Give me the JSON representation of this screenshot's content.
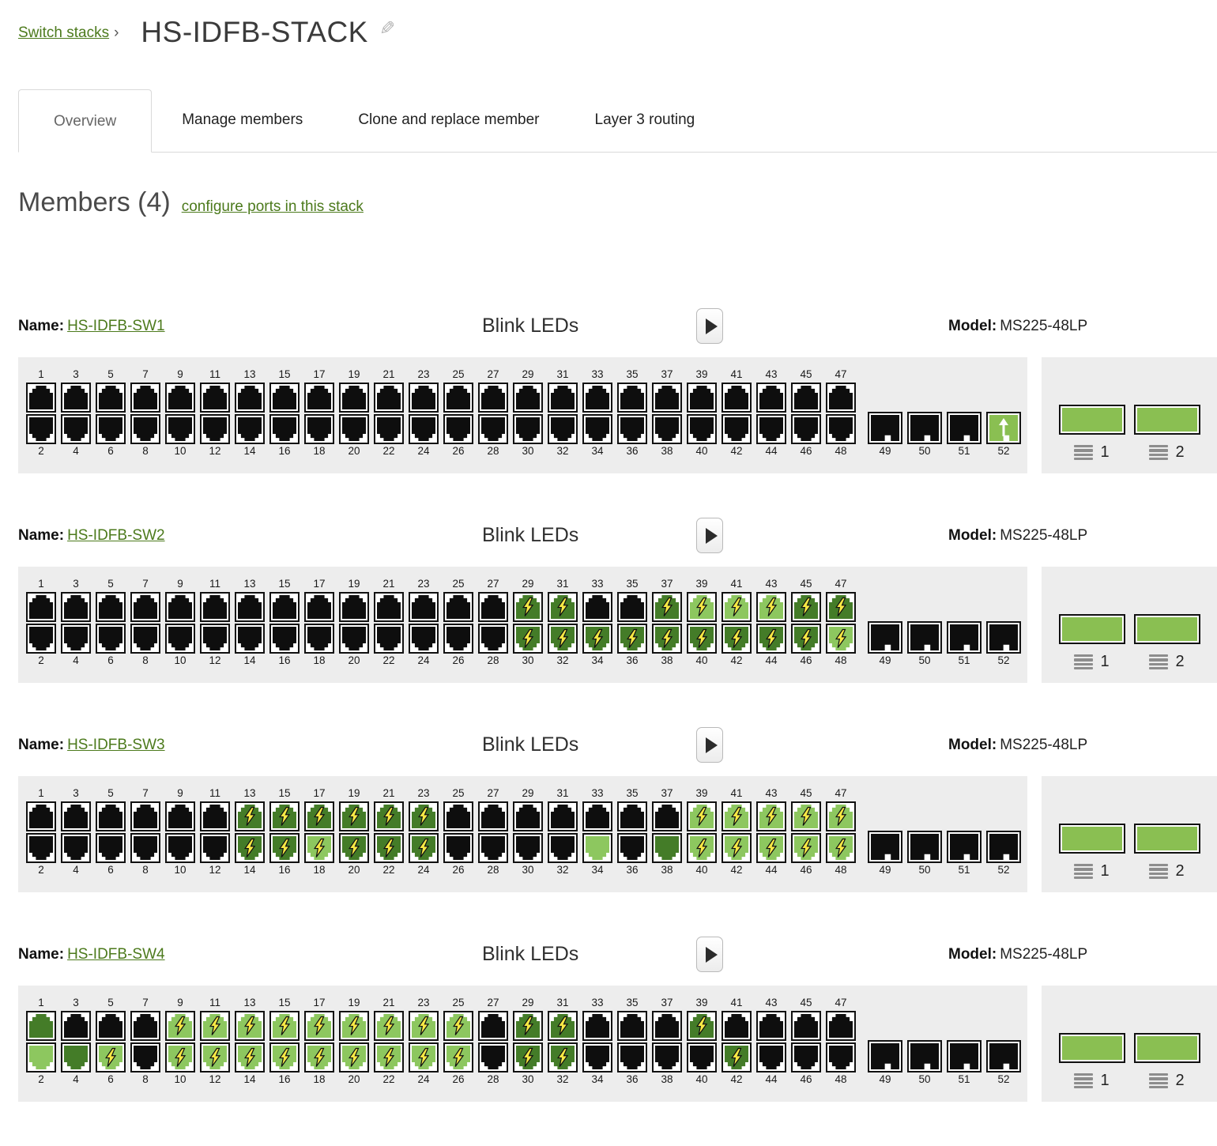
{
  "breadcrumb": {
    "label": "Switch stacks",
    "separator": "›"
  },
  "page": {
    "title": "HS-IDFB-STACK",
    "edit_icon": "✎"
  },
  "tabs": [
    {
      "label": "Overview",
      "active": true
    },
    {
      "label": "Manage members",
      "active": false
    },
    {
      "label": "Clone and replace member",
      "active": false
    },
    {
      "label": "Layer 3 routing",
      "active": false
    }
  ],
  "members": {
    "heading": "Members (4)",
    "configure_link": "configure ports in this stack"
  },
  "switch_row": {
    "name_label": "Name:",
    "model_label": "Model:",
    "blink_label": "Blink LEDs"
  },
  "stack_ports": {
    "labels": [
      "1",
      "2"
    ]
  },
  "ports": {
    "count": 52,
    "sfp_start": 49
  },
  "colors": {
    "link_green": "#4c7a1c",
    "port_black": "#0e0e0e",
    "port_dark_green": "#447c28",
    "port_light_green": "#8dc75f",
    "bolt_yellow": "#f6e844",
    "panel_bg": "#ededed",
    "stack_port_green": "#8abf52"
  },
  "switches": [
    {
      "name": "HS-IDFB-SW1",
      "model": "MS225-48LP",
      "port_states": {
        "52": "uplink"
      }
    },
    {
      "name": "HS-IDFB-SW2",
      "model": "MS225-48LP",
      "port_states": {
        "29": "dark-bolt",
        "30": "dark-bolt",
        "31": "dark-bolt",
        "32": "dark-bolt",
        "34": "dark-bolt",
        "36": "dark-bolt",
        "37": "dark-bolt",
        "38": "dark-bolt",
        "39": "light-bolt",
        "40": "dark-bolt",
        "41": "light-bolt",
        "42": "dark-bolt",
        "43": "light-bolt",
        "44": "dark-bolt",
        "45": "dark-bolt",
        "46": "dark-bolt",
        "47": "dark-bolt",
        "48": "light-bolt"
      }
    },
    {
      "name": "HS-IDFB-SW3",
      "model": "MS225-48LP",
      "port_states": {
        "13": "dark-bolt",
        "14": "dark-bolt",
        "15": "dark-bolt",
        "16": "dark-bolt",
        "17": "dark-bolt",
        "18": "light-bolt",
        "19": "dark-bolt",
        "20": "dark-bolt",
        "21": "dark-bolt",
        "22": "dark-bolt",
        "23": "dark-bolt",
        "24": "dark-bolt",
        "34": "light",
        "38": "dark",
        "39": "light-bolt",
        "40": "light-bolt",
        "41": "light-bolt",
        "42": "light-bolt",
        "43": "light-bolt",
        "44": "light-bolt",
        "45": "light-bolt",
        "46": "light-bolt",
        "47": "light-bolt",
        "48": "light-bolt"
      }
    },
    {
      "name": "HS-IDFB-SW4",
      "model": "MS225-48LP",
      "port_states": {
        "1": "dark",
        "2": "light",
        "4": "dark",
        "6": "light-bolt",
        "9": "light-bolt",
        "10": "light-bolt",
        "11": "light-bolt",
        "12": "light-bolt",
        "13": "light-bolt",
        "14": "light-bolt",
        "15": "light-bolt",
        "16": "light-bolt",
        "17": "light-bolt",
        "18": "light-bolt",
        "19": "light-bolt",
        "20": "light-bolt",
        "21": "light-bolt",
        "22": "light-bolt",
        "23": "light-bolt",
        "24": "light-bolt",
        "25": "light-bolt",
        "26": "light-bolt",
        "29": "dark-bolt",
        "30": "dark-bolt",
        "31": "dark-bolt",
        "32": "dark-bolt",
        "39": "dark-bolt",
        "42": "dark-bolt"
      }
    }
  ]
}
